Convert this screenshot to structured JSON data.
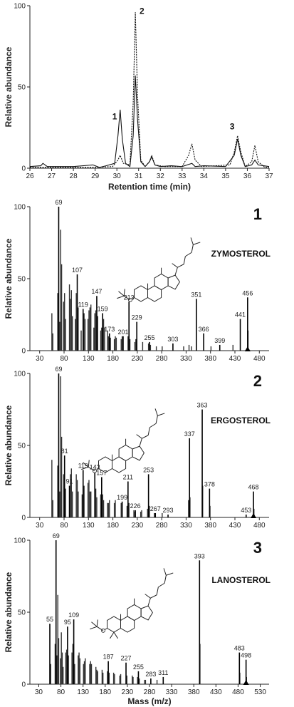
{
  "chart_data": [
    {
      "type": "line",
      "xlabel": "Retention time (min)",
      "ylabel": "Relative abundance",
      "xlim": [
        26,
        37
      ],
      "ylim": [
        0,
        100
      ],
      "xticks": [
        "26",
        "27",
        "28",
        "29",
        "30",
        "31",
        "32",
        "33",
        "34",
        "35",
        "36",
        "37"
      ],
      "yticks": [
        "0",
        "50",
        "100"
      ],
      "series": [
        {
          "style": "solid",
          "points": [
            [
              26,
              1
            ],
            [
              26.5,
              1.5
            ],
            [
              26.6,
              3
            ],
            [
              26.8,
              1
            ],
            [
              27.5,
              1
            ],
            [
              28,
              1
            ],
            [
              28.9,
              2
            ],
            [
              29.2,
              0.5
            ],
            [
              29.5,
              1.5
            ],
            [
              29.9,
              3
            ],
            [
              30.05,
              20
            ],
            [
              30.15,
              36
            ],
            [
              30.25,
              18
            ],
            [
              30.4,
              3
            ],
            [
              30.6,
              1
            ],
            [
              30.75,
              20
            ],
            [
              30.85,
              57
            ],
            [
              30.95,
              30
            ],
            [
              31.1,
              4
            ],
            [
              31.3,
              1
            ],
            [
              31.5,
              4
            ],
            [
              31.6,
              7
            ],
            [
              31.75,
              2
            ],
            [
              32,
              1
            ],
            [
              32.5,
              1.5
            ],
            [
              33,
              1
            ],
            [
              33.45,
              3
            ],
            [
              33.6,
              1
            ],
            [
              34,
              1.5
            ],
            [
              35,
              1
            ],
            [
              35.4,
              8
            ],
            [
              35.55,
              18
            ],
            [
              35.7,
              8
            ],
            [
              35.9,
              1
            ],
            [
              36.2,
              2
            ],
            [
              36.35,
              5
            ],
            [
              36.5,
              2
            ],
            [
              37,
              1
            ]
          ]
        },
        {
          "style": "dotted",
          "points": [
            [
              26,
              0.5
            ],
            [
              27,
              0.5
            ],
            [
              28,
              0.5
            ],
            [
              29,
              0.5
            ],
            [
              29.8,
              1
            ],
            [
              30.05,
              5
            ],
            [
              30.15,
              8
            ],
            [
              30.3,
              3
            ],
            [
              30.6,
              2
            ],
            [
              30.75,
              40
            ],
            [
              30.85,
              96
            ],
            [
              30.95,
              45
            ],
            [
              31.1,
              5
            ],
            [
              31.3,
              1
            ],
            [
              31.5,
              4
            ],
            [
              31.6,
              8
            ],
            [
              31.75,
              2
            ],
            [
              32.2,
              1
            ],
            [
              33,
              1
            ],
            [
              33.3,
              8
            ],
            [
              33.45,
              15
            ],
            [
              33.6,
              5
            ],
            [
              33.9,
              1
            ],
            [
              35.2,
              2
            ],
            [
              35.4,
              10
            ],
            [
              35.55,
              20
            ],
            [
              35.7,
              10
            ],
            [
              35.9,
              1
            ],
            [
              36.2,
              4
            ],
            [
              36.35,
              14
            ],
            [
              36.5,
              4
            ],
            [
              36.8,
              0.5
            ],
            [
              37,
              0.5
            ]
          ]
        }
      ],
      "annotations": [
        {
          "text": "1",
          "x": 29.9,
          "y": 30
        },
        {
          "text": "2",
          "x": 31.15,
          "y": 95
        },
        {
          "text": "3",
          "x": 35.3,
          "y": 24
        }
      ]
    },
    {
      "type": "bar",
      "panel_number": "1",
      "compound": "ZYMOSTEROL",
      "xlabel": "",
      "ylabel": "Relative abundance",
      "xlim": [
        10,
        500
      ],
      "ylim": [
        0,
        100
      ],
      "xticks": [
        "30",
        "80",
        "130",
        "180",
        "230",
        "280",
        "330",
        "380",
        "430",
        "480"
      ],
      "yticks": [
        "0",
        "50",
        "100"
      ],
      "labeled_peaks": [
        [
          69,
          100
        ],
        [
          107,
          53
        ],
        [
          119,
          29
        ],
        [
          147,
          38
        ],
        [
          159,
          26
        ],
        [
          173,
          12
        ],
        [
          201,
          10
        ],
        [
          213,
          34
        ],
        [
          229,
          20
        ],
        [
          255,
          6
        ],
        [
          303,
          5
        ],
        [
          351,
          36
        ],
        [
          366,
          12
        ],
        [
          399,
          4
        ],
        [
          441,
          22
        ],
        [
          456,
          37
        ]
      ],
      "peaks": [
        [
          55,
          26
        ],
        [
          57,
          12
        ],
        [
          67,
          40
        ],
        [
          71,
          20
        ],
        [
          73,
          84
        ],
        [
          75,
          60
        ],
        [
          79,
          34
        ],
        [
          81,
          40
        ],
        [
          83,
          22
        ],
        [
          91,
          46
        ],
        [
          93,
          36
        ],
        [
          95,
          42
        ],
        [
          97,
          24
        ],
        [
          103,
          22
        ],
        [
          105,
          40
        ],
        [
          109,
          30
        ],
        [
          115,
          14
        ],
        [
          121,
          26
        ],
        [
          123,
          22
        ],
        [
          129,
          22
        ],
        [
          131,
          28
        ],
        [
          133,
          30
        ],
        [
          135,
          32
        ],
        [
          141,
          16
        ],
        [
          143,
          26
        ],
        [
          145,
          28
        ],
        [
          149,
          24
        ],
        [
          155,
          14
        ],
        [
          157,
          16
        ],
        [
          161,
          22
        ],
        [
          163,
          16
        ],
        [
          169,
          14
        ],
        [
          171,
          10
        ],
        [
          175,
          9
        ],
        [
          183,
          8
        ],
        [
          185,
          10
        ],
        [
          187,
          9
        ],
        [
          197,
          8
        ],
        [
          199,
          10
        ],
        [
          211,
          10
        ],
        [
          215,
          8
        ],
        [
          225,
          6
        ],
        [
          227,
          8
        ],
        [
          241,
          6
        ],
        [
          253,
          5
        ],
        [
          257,
          4
        ],
        [
          269,
          3
        ],
        [
          281,
          3
        ],
        [
          325,
          3
        ],
        [
          336,
          4
        ],
        [
          341,
          3
        ],
        [
          381,
          3
        ],
        [
          426,
          4
        ],
        [
          457,
          14
        ]
      ]
    },
    {
      "type": "bar",
      "panel_number": "2",
      "compound": "ERGOSTEROL",
      "xlabel": "",
      "ylabel": "Relative abundance",
      "xlim": [
        10,
        500
      ],
      "ylim": [
        0,
        100
      ],
      "xticks": [
        "30",
        "80",
        "130",
        "180",
        "230",
        "280",
        "330",
        "380",
        "430",
        "480"
      ],
      "yticks": [
        "0",
        "50",
        "100"
      ],
      "labeled_peaks": [
        [
          69,
          100
        ],
        [
          81,
          43
        ],
        [
          91,
          22
        ],
        [
          119,
          33
        ],
        [
          143,
          32
        ],
        [
          157,
          28
        ],
        [
          199,
          11
        ],
        [
          211,
          25
        ],
        [
          226,
          5
        ],
        [
          253,
          30
        ],
        [
          267,
          3
        ],
        [
          293,
          2
        ],
        [
          337,
          55
        ],
        [
          363,
          75
        ],
        [
          378,
          20
        ],
        [
          453,
          2
        ],
        [
          468,
          18
        ]
      ],
      "peaks": [
        [
          55,
          40
        ],
        [
          57,
          12
        ],
        [
          67,
          36
        ],
        [
          71,
          18
        ],
        [
          73,
          98
        ],
        [
          75,
          56
        ],
        [
          79,
          30
        ],
        [
          83,
          20
        ],
        [
          93,
          30
        ],
        [
          95,
          34
        ],
        [
          97,
          18
        ],
        [
          105,
          30
        ],
        [
          107,
          26
        ],
        [
          109,
          18
        ],
        [
          117,
          16
        ],
        [
          121,
          22
        ],
        [
          129,
          24
        ],
        [
          131,
          26
        ],
        [
          133,
          18
        ],
        [
          135,
          18
        ],
        [
          145,
          20
        ],
        [
          147,
          14
        ],
        [
          155,
          16
        ],
        [
          159,
          16
        ],
        [
          161,
          12
        ],
        [
          169,
          10
        ],
        [
          171,
          10
        ],
        [
          173,
          12
        ],
        [
          183,
          10
        ],
        [
          185,
          12
        ],
        [
          197,
          10
        ],
        [
          209,
          8
        ],
        [
          213,
          10
        ],
        [
          223,
          5
        ],
        [
          225,
          4
        ],
        [
          237,
          4
        ],
        [
          239,
          5
        ],
        [
          251,
          6
        ],
        [
          255,
          8
        ],
        [
          265,
          3
        ],
        [
          281,
          3
        ],
        [
          335,
          12
        ],
        [
          336,
          10
        ],
        [
          338,
          14
        ],
        [
          364,
          22
        ],
        [
          379,
          8
        ],
        [
          469,
          6
        ]
      ]
    },
    {
      "type": "bar",
      "panel_number": "3",
      "compound": "LANOSTEROL",
      "xlabel": "Mass (m/z)",
      "ylabel": "Relative abundance",
      "xlim": [
        10,
        550
      ],
      "ylim": [
        0,
        100
      ],
      "xticks": [
        "30",
        "80",
        "130",
        "180",
        "230",
        "280",
        "330",
        "380",
        "430",
        "480",
        "530"
      ],
      "yticks": [
        "0",
        "50",
        "100"
      ],
      "labeled_peaks": [
        [
          55,
          42
        ],
        [
          69,
          100
        ],
        [
          95,
          40
        ],
        [
          109,
          45
        ],
        [
          187,
          16
        ],
        [
          227,
          15
        ],
        [
          255,
          9
        ],
        [
          283,
          4
        ],
        [
          311,
          5
        ],
        [
          393,
          86
        ],
        [
          483,
          22
        ],
        [
          498,
          17
        ]
      ],
      "peaks": [
        [
          57,
          14
        ],
        [
          67,
          28
        ],
        [
          71,
          20
        ],
        [
          73,
          62
        ],
        [
          75,
          32
        ],
        [
          79,
          18
        ],
        [
          81,
          36
        ],
        [
          83,
          22
        ],
        [
          85,
          12
        ],
        [
          91,
          22
        ],
        [
          93,
          24
        ],
        [
          97,
          20
        ],
        [
          105,
          22
        ],
        [
          107,
          28
        ],
        [
          111,
          14
        ],
        [
          119,
          20
        ],
        [
          121,
          22
        ],
        [
          123,
          18
        ],
        [
          131,
          14
        ],
        [
          133,
          16
        ],
        [
          135,
          18
        ],
        [
          145,
          14
        ],
        [
          147,
          16
        ],
        [
          149,
          14
        ],
        [
          159,
          12
        ],
        [
          161,
          10
        ],
        [
          163,
          9
        ],
        [
          173,
          10
        ],
        [
          175,
          8
        ],
        [
          185,
          9
        ],
        [
          189,
          8
        ],
        [
          199,
          8
        ],
        [
          201,
          7
        ],
        [
          213,
          6
        ],
        [
          215,
          7
        ],
        [
          229,
          6
        ],
        [
          241,
          6
        ],
        [
          243,
          5
        ],
        [
          253,
          5
        ],
        [
          257,
          4
        ],
        [
          269,
          3
        ],
        [
          271,
          3
        ],
        [
          297,
          3
        ],
        [
          394,
          28
        ],
        [
          484,
          8
        ],
        [
          499,
          5
        ]
      ]
    }
  ]
}
